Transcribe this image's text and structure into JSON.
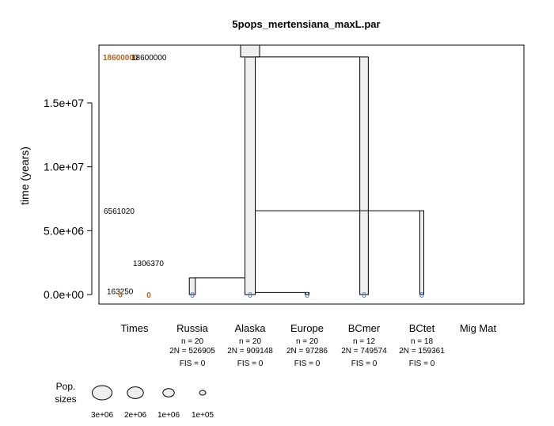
{
  "chart_data": {
    "type": "tree",
    "title": "5pops_mertensiana_maxL.par",
    "ylabel": "time (years)",
    "ylim": [
      -700000,
      19000000
    ],
    "yticks": [
      {
        "v": 0,
        "label": "0.0e+00"
      },
      {
        "v": 5000000,
        "label": "5.0e+06"
      },
      {
        "v": 10000000,
        "label": "1.0e+07"
      },
      {
        "v": 15000000,
        "label": "1.5e+07"
      }
    ],
    "populations": [
      {
        "key": "russia",
        "name": "Russia",
        "n": "n = 20",
        "n2": "2N = 526905",
        "fis": "FIS = 0",
        "size": 526905
      },
      {
        "key": "alaska",
        "name": "Alaska",
        "n": "n = 20",
        "n2": "2N = 909148",
        "fis": "FIS = 0",
        "size": 909148
      },
      {
        "key": "europe",
        "name": "Europe",
        "n": "n = 20",
        "n2": "2N = 97286",
        "fis": "FIS = 0",
        "size": 97286
      },
      {
        "key": "bcmer",
        "name": "BCmer",
        "n": "n = 12",
        "n2": "2N = 749574",
        "fis": "FIS = 0",
        "size": 749574
      },
      {
        "key": "bctet",
        "name": "BCtet",
        "n": "n = 18",
        "n2": "2N = 159361",
        "fis": "FIS = 0",
        "size": 159361
      }
    ],
    "column_labels": {
      "times": "Times",
      "migmat": "Mig Mat"
    },
    "events": [
      {
        "time": 18600000,
        "from": "bcmer",
        "to": "alaska"
      },
      {
        "time": 6561020,
        "from": "bctet",
        "to": "alaska"
      },
      {
        "time": 1306370,
        "from": "russia",
        "to": "alaska"
      },
      {
        "time": 163250,
        "from": "europe",
        "to": "alaska"
      }
    ],
    "time_labels": [
      {
        "text": "18600000",
        "time": 18600000,
        "color": "#b5651d"
      },
      {
        "text": "18600000",
        "time": 18600000,
        "color": "#000000"
      },
      {
        "text": "6561020",
        "time": 6561020,
        "color": "#000000"
      },
      {
        "text": "1306370",
        "time": 1306370,
        "color": "#000000"
      },
      {
        "text": "163250",
        "time": 163250,
        "color": "#000000"
      },
      {
        "text": "0",
        "time": 163250,
        "color": "#b5651d"
      },
      {
        "text": "0",
        "time": 0,
        "color": "#b5651d"
      }
    ],
    "sample_marker": "0",
    "legend": {
      "title_lines": [
        "Pop.",
        "sizes"
      ],
      "sizes": [
        {
          "value": 3000000,
          "label": "3e+06"
        },
        {
          "value": 2000000,
          "label": "2e+06"
        },
        {
          "value": 1000000,
          "label": "1e+06"
        },
        {
          "value": 100000,
          "label": "1e+05"
        }
      ]
    },
    "colors": {
      "branch_fill": "#efefef",
      "sample": "#3a78c8",
      "orange": "#b5651d"
    }
  }
}
